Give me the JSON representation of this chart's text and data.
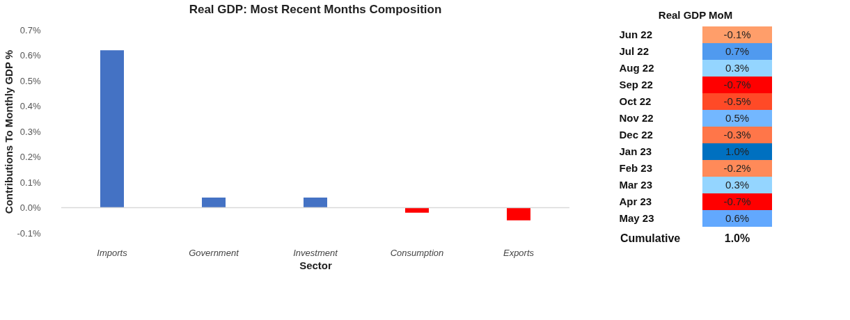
{
  "chart_data": [
    {
      "type": "bar",
      "title": "Real GDP: Most Recent Months Composition",
      "xlabel": "Sector",
      "ylabel": "Contributions To Monthly GDP %",
      "categories": [
        "Imports",
        "Government",
        "Investment",
        "Consumption",
        "Exports"
      ],
      "values": [
        0.62,
        0.04,
        0.04,
        -0.02,
        -0.05
      ],
      "colors": [
        "#4472c4",
        "#4472c4",
        "#4472c4",
        "#ff0000",
        "#ff0000"
      ],
      "ylim": [
        -0.1,
        0.7
      ],
      "yticks": [
        {
          "value": -0.1,
          "label": "-0.1%"
        },
        {
          "value": 0,
          "label": "0.0%"
        },
        {
          "value": 0.1,
          "label": "0.1%"
        },
        {
          "value": 0.2,
          "label": "0.2%"
        },
        {
          "value": 0.3,
          "label": "0.3%"
        },
        {
          "value": 0.4,
          "label": "0.4%"
        },
        {
          "value": 0.5,
          "label": "0.5%"
        },
        {
          "value": 0.6,
          "label": "0.6%"
        },
        {
          "value": 0.7,
          "label": "0.7%"
        }
      ]
    },
    {
      "type": "heatmap",
      "title": "Real GDP MoM",
      "categories": [
        null
      ],
      "y_categories": [
        "Jun 22",
        "Jul 22",
        "Aug 22",
        "Sep 22",
        "Oct 22",
        "Nov 22",
        "Dec 22",
        "Jan 23",
        "Feb 23",
        "Mar 23",
        "Apr 23",
        "May 23"
      ],
      "cells": [
        [
          -0.1
        ],
        [
          0.7
        ],
        [
          0.3
        ],
        [
          -0.7
        ],
        [
          -0.5
        ],
        [
          0.5
        ],
        [
          -0.3
        ],
        [
          1.0
        ],
        [
          -0.2
        ],
        [
          0.3
        ],
        [
          -0.7
        ],
        [
          0.6
        ]
      ],
      "cell_labels": [
        [
          "-0.1%"
        ],
        [
          "0.7%"
        ],
        [
          "0.3%"
        ],
        [
          "-0.7%"
        ],
        [
          "-0.5%"
        ],
        [
          "0.5%"
        ],
        [
          "-0.3%"
        ],
        [
          "1.0%"
        ],
        [
          "-0.2%"
        ],
        [
          "0.3%"
        ],
        [
          "-0.7%"
        ],
        [
          "0.6%"
        ]
      ],
      "annotations": [
        "Cumulative",
        "1.0%"
      ]
    }
  ]
}
